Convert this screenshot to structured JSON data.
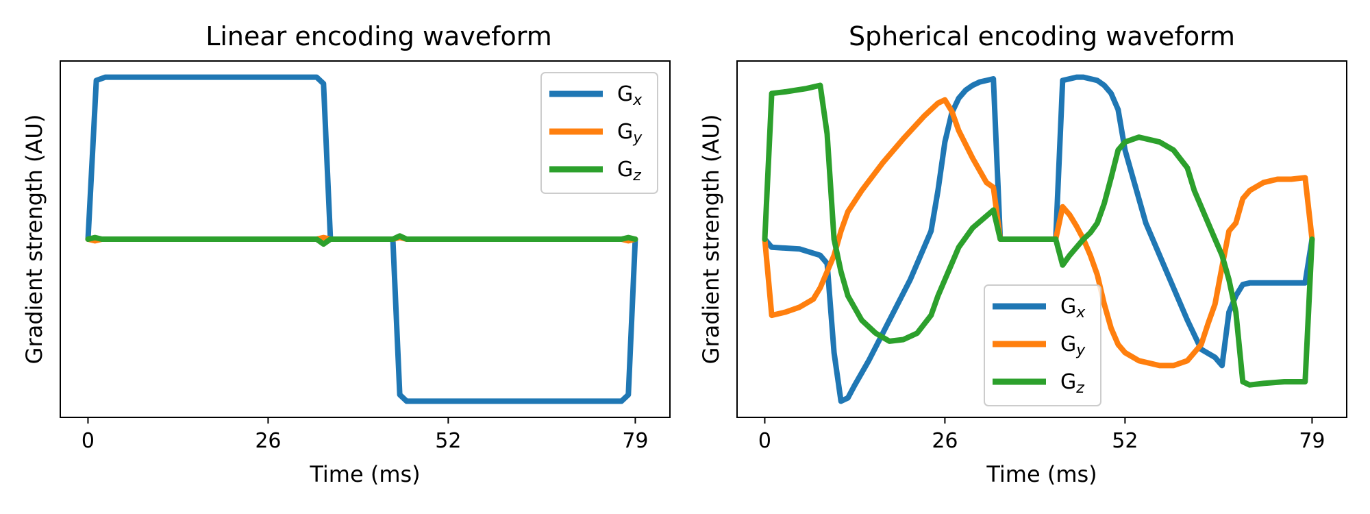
{
  "chart_data": [
    {
      "type": "line",
      "title": "Linear encoding waveform",
      "xlabel": "Time (ms)",
      "ylabel": "Gradient strength (AU)",
      "xlim": [
        -4,
        84
      ],
      "ylim": [
        -1.1,
        1.1
      ],
      "xticks": [
        0,
        26,
        52,
        79
      ],
      "legend_position": "top-right",
      "series": [
        {
          "name": "G",
          "sub": "x",
          "color": "#1f77b4",
          "x": [
            0,
            1.2,
            2.5,
            33,
            34,
            35,
            44,
            45,
            46,
            77,
            78,
            79
          ],
          "y": [
            0,
            0.98,
            1,
            1,
            0.96,
            0,
            0,
            -0.96,
            -1,
            -1,
            -0.96,
            0
          ]
        },
        {
          "name": "G",
          "sub": "y",
          "color": "#ff7f0e",
          "x": [
            0,
            1,
            2,
            33,
            34,
            35,
            44,
            45,
            46,
            77,
            78,
            79
          ],
          "y": [
            0,
            -0.01,
            0,
            0,
            0.01,
            0,
            0,
            0.01,
            0,
            0,
            -0.01,
            0
          ]
        },
        {
          "name": "G",
          "sub": "z",
          "color": "#2ca02c",
          "x": [
            0,
            1,
            2,
            33,
            34,
            35,
            44,
            45,
            46,
            77,
            78,
            79
          ],
          "y": [
            0,
            0.01,
            0,
            0,
            -0.03,
            0,
            0,
            0.02,
            0,
            0,
            0.01,
            0
          ]
        }
      ]
    },
    {
      "type": "line",
      "title": "Spherical encoding waveform",
      "xlabel": "Time (ms)",
      "ylabel": "Gradient strength (AU)",
      "xlim": [
        -4,
        84
      ],
      "ylim": [
        -1.1,
        1.1
      ],
      "xticks": [
        0,
        26,
        52,
        79
      ],
      "legend_position": "lower-center",
      "series": [
        {
          "name": "G",
          "sub": "x",
          "color": "#1f77b4",
          "x": [
            0,
            1,
            5,
            8,
            9,
            10,
            11,
            12,
            13,
            15,
            18,
            21,
            24,
            25,
            26,
            27,
            28,
            29,
            30,
            31,
            32,
            33,
            34,
            35,
            38,
            42,
            43,
            44,
            45,
            46,
            47,
            48,
            49,
            50,
            51,
            52,
            55,
            58,
            61,
            63,
            65,
            66,
            67,
            68,
            69,
            70,
            71,
            72,
            75,
            78,
            79
          ],
          "y": [
            0,
            -0.05,
            -0.06,
            -0.1,
            -0.15,
            -0.7,
            -1.0,
            -0.98,
            -0.9,
            -0.75,
            -0.5,
            -0.25,
            0.05,
            0.3,
            0.6,
            0.78,
            0.87,
            0.92,
            0.95,
            0.97,
            0.98,
            0.99,
            0,
            0,
            0,
            0,
            0.98,
            0.99,
            1.0,
            1.0,
            0.99,
            0.98,
            0.95,
            0.9,
            0.8,
            0.55,
            0.1,
            -0.2,
            -0.5,
            -0.68,
            -0.73,
            -0.78,
            -0.45,
            -0.35,
            -0.28,
            -0.27,
            -0.27,
            -0.27,
            -0.27,
            -0.27,
            0
          ]
        },
        {
          "name": "G",
          "sub": "y",
          "color": "#ff7f0e",
          "x": [
            0,
            1,
            3,
            5,
            7,
            8,
            9,
            10,
            11,
            12,
            14,
            17,
            20,
            23,
            25,
            26,
            27,
            28,
            30,
            32,
            33,
            34,
            35,
            38,
            42,
            43,
            44,
            45,
            46,
            47,
            48,
            49,
            50,
            51,
            52,
            54,
            57,
            59,
            61,
            63,
            64,
            65,
            66,
            67,
            68,
            69,
            70,
            72,
            74,
            76,
            78,
            79
          ],
          "y": [
            0,
            -0.47,
            -0.45,
            -0.42,
            -0.37,
            -0.3,
            -0.2,
            -0.1,
            0.05,
            0.17,
            0.3,
            0.47,
            0.62,
            0.76,
            0.84,
            0.86,
            0.79,
            0.67,
            0.5,
            0.35,
            0.32,
            0,
            0,
            0,
            0,
            0.2,
            0.15,
            0.08,
            0,
            -0.1,
            -0.22,
            -0.4,
            -0.55,
            -0.65,
            -0.7,
            -0.75,
            -0.78,
            -0.78,
            -0.75,
            -0.65,
            -0.52,
            -0.4,
            -0.17,
            0.05,
            0.1,
            0.25,
            0.3,
            0.35,
            0.37,
            0.37,
            0.38,
            0
          ]
        },
        {
          "name": "G",
          "sub": "z",
          "color": "#2ca02c",
          "x": [
            0,
            1,
            3,
            6,
            8,
            9,
            10,
            11,
            12,
            14,
            16,
            18,
            20,
            22,
            24,
            25,
            26,
            27,
            28,
            30,
            33,
            34,
            35,
            38,
            42,
            43,
            44,
            45,
            46,
            47,
            48,
            49,
            50,
            51,
            52,
            54,
            57,
            59,
            61,
            62,
            63,
            64,
            65,
            66,
            67,
            68,
            69,
            70,
            72,
            75,
            78,
            79
          ],
          "y": [
            0,
            0.9,
            0.91,
            0.93,
            0.95,
            0.65,
            0.0,
            -0.2,
            -0.35,
            -0.5,
            -0.58,
            -0.63,
            -0.62,
            -0.58,
            -0.47,
            -0.35,
            -0.25,
            -0.15,
            -0.05,
            0.07,
            0.18,
            0,
            0,
            0,
            0,
            -0.16,
            -0.1,
            -0.05,
            0.0,
            0.04,
            0.1,
            0.22,
            0.38,
            0.55,
            0.6,
            0.63,
            0.6,
            0.55,
            0.44,
            0.3,
            0.2,
            0.1,
            0.0,
            -0.1,
            -0.25,
            -0.45,
            -0.88,
            -0.9,
            -0.89,
            -0.88,
            -0.88,
            0
          ]
        }
      ]
    }
  ]
}
